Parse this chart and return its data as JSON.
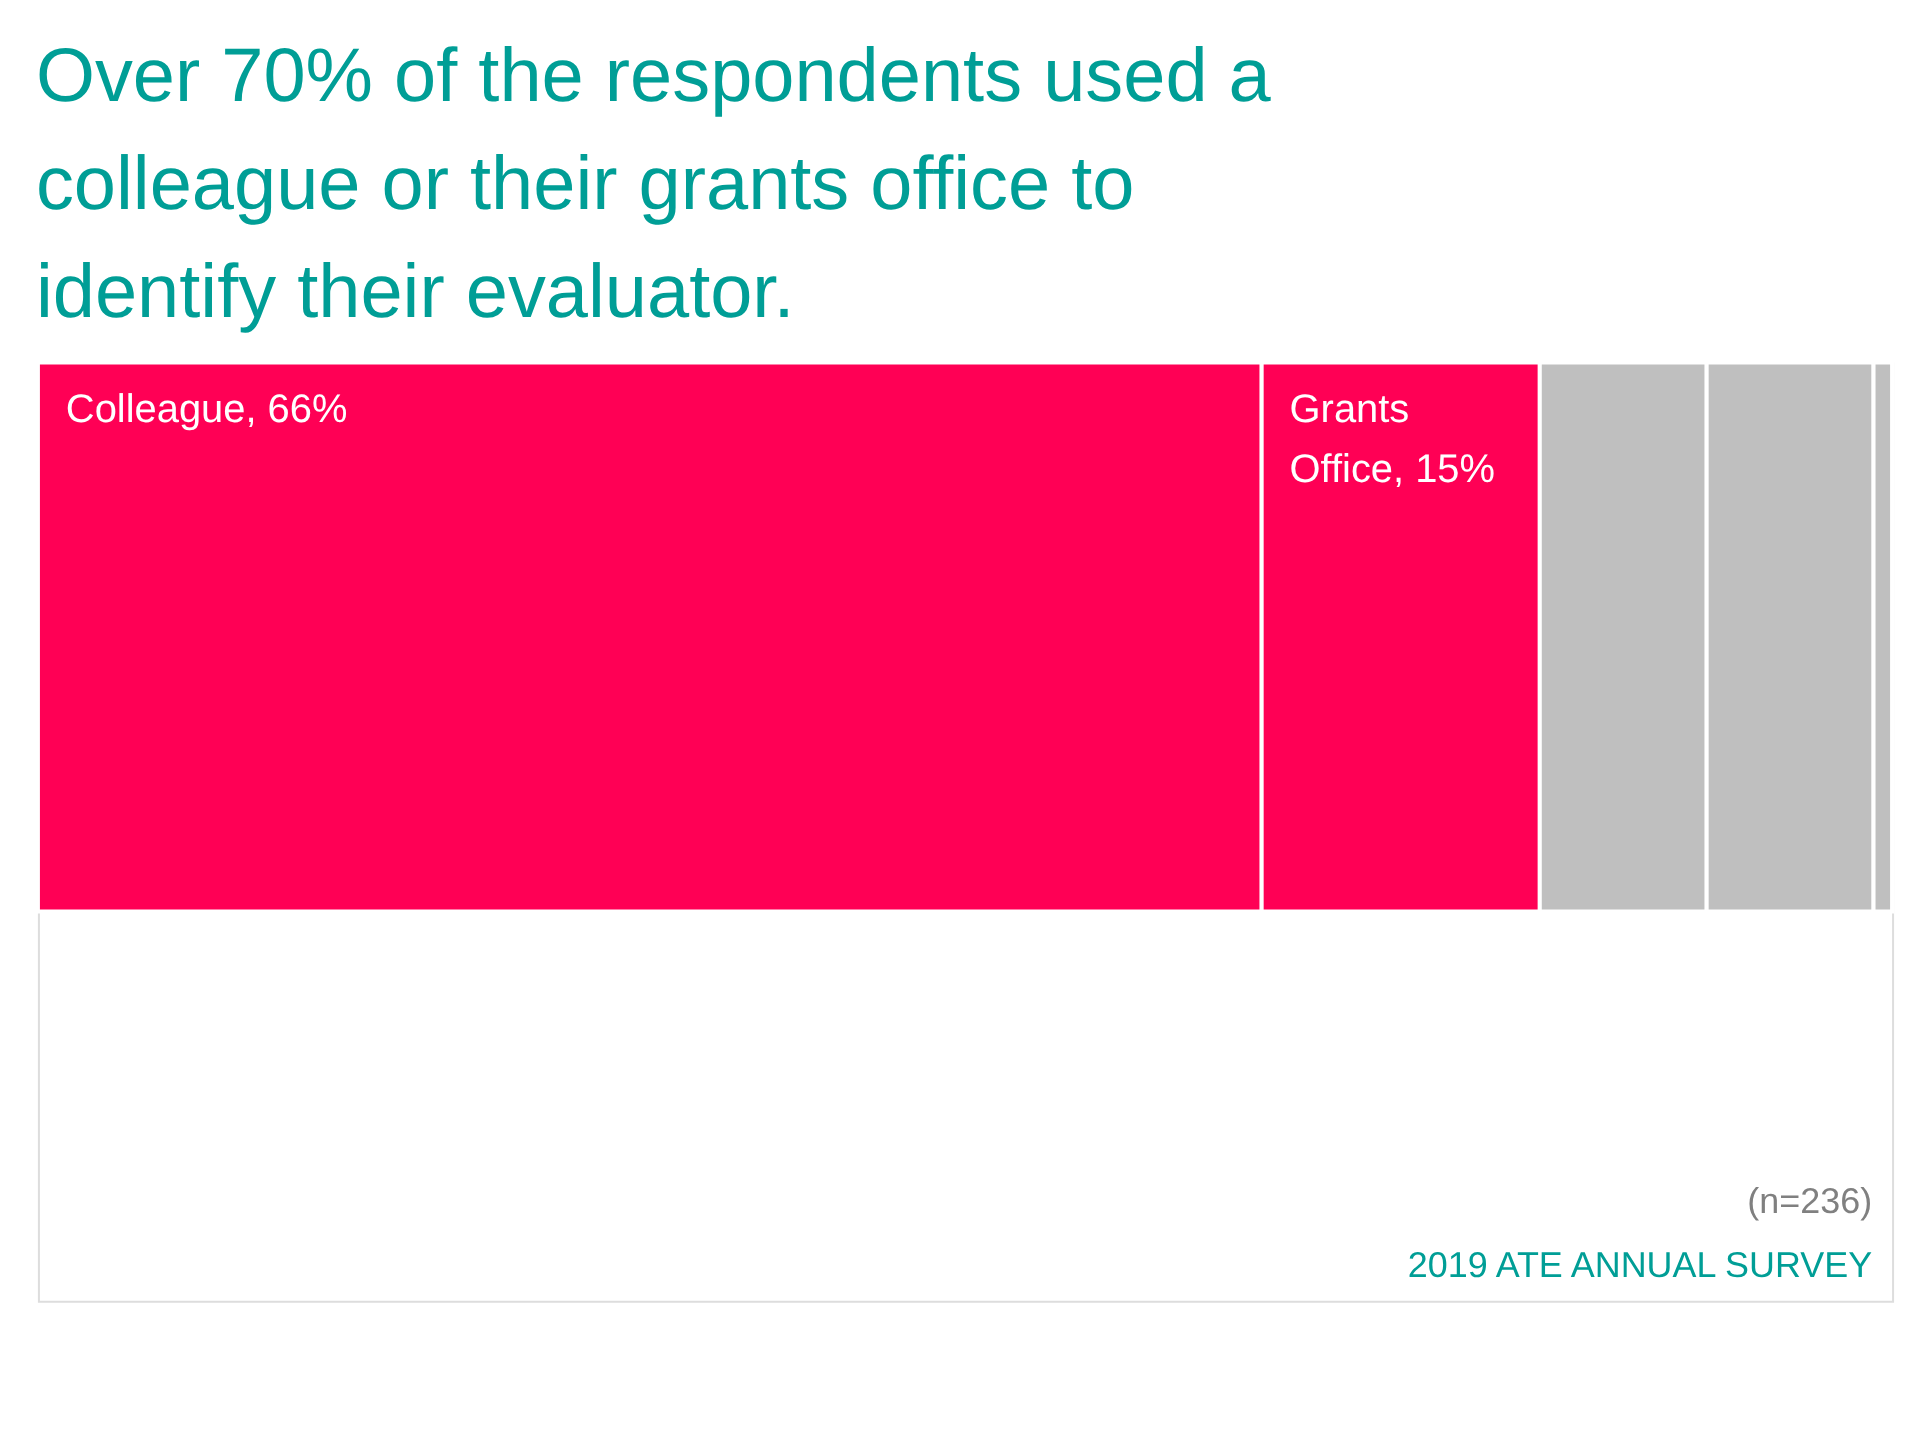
{
  "chart_data": {
    "type": "bar",
    "title": "Over 70% of the respondents used a colleague or their grants office to identify their evaluator.",
    "orientation": "horizontal",
    "stacked": true,
    "categories": [
      null
    ],
    "tick_labels": false,
    "series": [
      {
        "color": "#ff0055",
        "values": [
          66
        ],
        "value_labels": [
          "Colleague, 66%"
        ]
      },
      {
        "color": "#ff0055",
        "values": [
          15
        ],
        "value_labels": [
          "Grants Office, 15%"
        ]
      },
      {
        "color": "#bfbfbf",
        "values": [
          9
        ]
      },
      {
        "color": "#bfbfbf",
        "values": [
          9
        ]
      },
      {
        "color": "#bfbfbf",
        "values": [
          1
        ]
      }
    ],
    "annotations": [
      "(n=236)",
      "2019 ATE ANNUAL SURVEY"
    ]
  }
}
